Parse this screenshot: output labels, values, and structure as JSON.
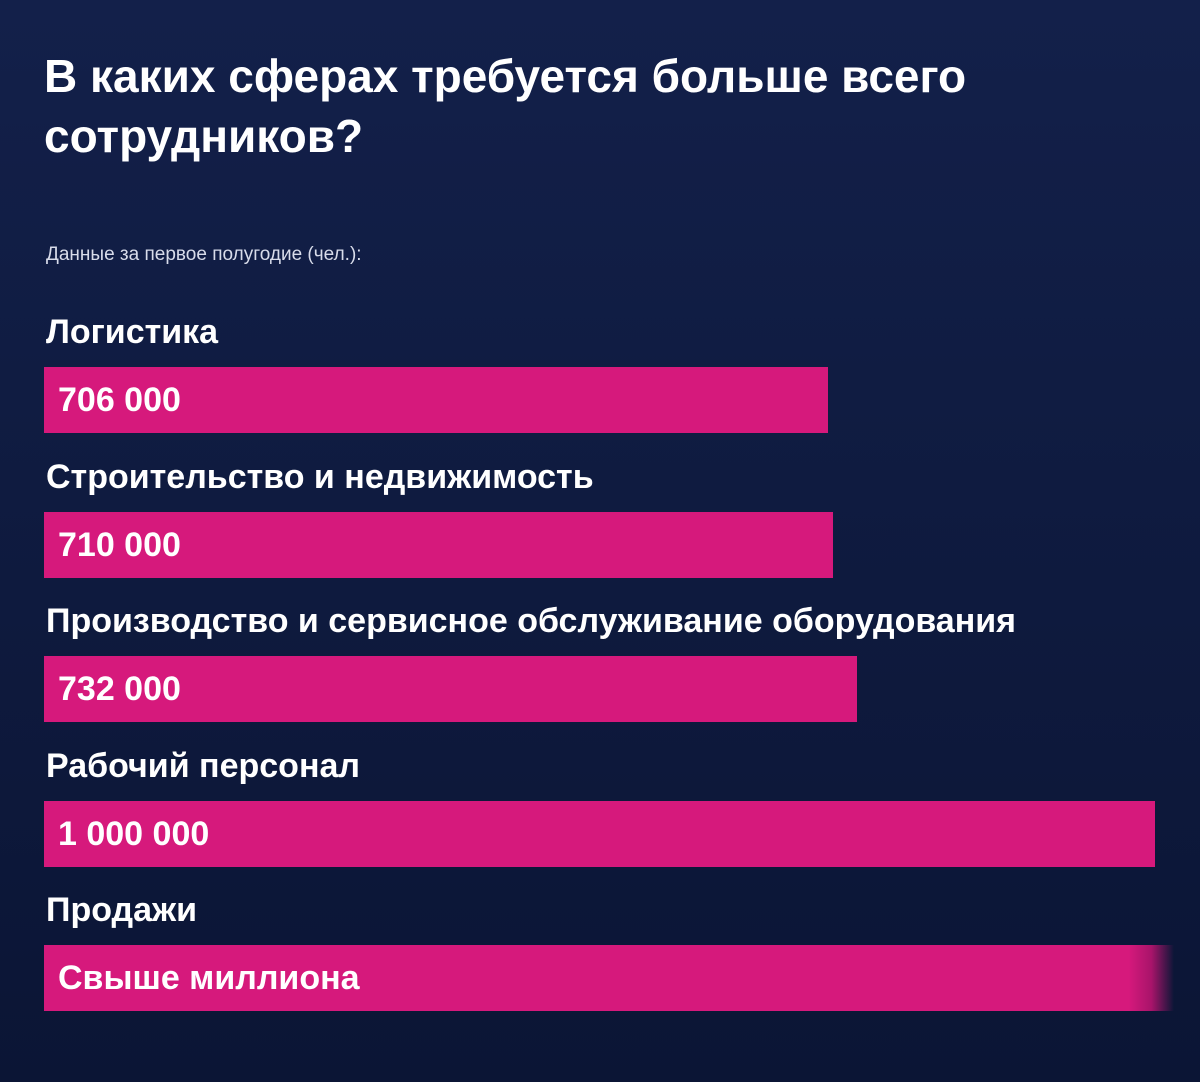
{
  "header": {
    "title": "В каких сферах требуется больше всего сотрудников?",
    "subtitle": "Данные за первое полугодие (чел.):"
  },
  "colors": {
    "background": "#0f1b40",
    "bar": "#d6197c",
    "text": "#ffffff"
  },
  "chart_data": {
    "type": "bar",
    "orientation": "horizontal",
    "title": "В каких сферах требуется больше всего сотрудников?",
    "subtitle": "Данные за первое полугодие (чел.):",
    "categories": [
      "Логистика",
      "Строительство и недвижимость",
      "Производство и сервисное обслуживание оборудования",
      "Рабочий персонал",
      "Продажи"
    ],
    "values": [
      706000,
      710000,
      732000,
      1000000,
      null
    ],
    "value_labels": [
      "706 000",
      "710 000",
      "732 000",
      "1 000 000",
      "Свыше миллиона"
    ],
    "xlim": [
      0,
      1000000
    ],
    "grid": false,
    "legend": "none"
  }
}
